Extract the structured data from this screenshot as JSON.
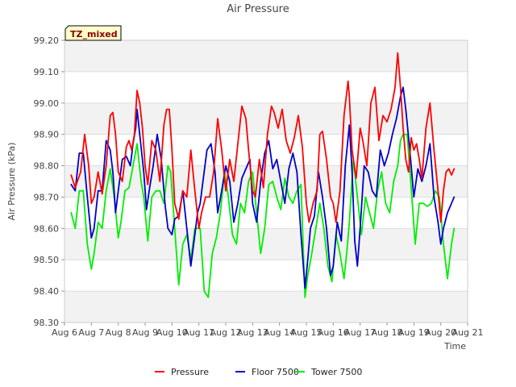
{
  "chart_data": {
    "type": "line",
    "title": "Air Pressure",
    "xlabel": "Time",
    "ylabel": "Air Pressure (kPa)",
    "badge": "TZ_mixed",
    "ylim": [
      98.3,
      99.2
    ],
    "xlim": [
      6,
      21
    ],
    "yticks": [
      "98.30",
      "98.40",
      "98.50",
      "98.60",
      "98.70",
      "98.80",
      "98.90",
      "99.00",
      "99.10",
      "99.20"
    ],
    "xticks": [
      "Aug 6",
      "Aug 7",
      "Aug 8",
      "Aug 9",
      "Aug 10",
      "Aug 11",
      "Aug 12",
      "Aug 13",
      "Aug 14",
      "Aug 15",
      "Aug 16",
      "Aug 17",
      "Aug 18",
      "Aug 19",
      "Aug 20",
      "Aug 21"
    ],
    "x_units": "day of August",
    "legend_position": "bottom",
    "series": [
      {
        "name": "Pressure",
        "color": "#ff0000",
        "x": [
          6.25,
          6.4,
          6.6,
          6.75,
          6.9,
          7.0,
          7.1,
          7.25,
          7.4,
          7.55,
          7.7,
          7.8,
          7.9,
          8.0,
          8.15,
          8.3,
          8.4,
          8.5,
          8.6,
          8.7,
          8.8,
          8.9,
          9.0,
          9.1,
          9.25,
          9.4,
          9.55,
          9.7,
          9.8,
          9.9,
          10.0,
          10.1,
          10.25,
          10.4,
          10.55,
          10.7,
          10.85,
          11.0,
          11.1,
          11.25,
          11.4,
          11.55,
          11.7,
          11.85,
          12.0,
          12.15,
          12.3,
          12.45,
          12.6,
          12.75,
          12.85,
          13.0,
          13.1,
          13.25,
          13.4,
          13.55,
          13.7,
          13.8,
          13.95,
          14.1,
          14.25,
          14.4,
          14.55,
          14.7,
          14.85,
          15.0,
          15.1,
          15.25,
          15.4,
          15.5,
          15.6,
          15.75,
          15.9,
          16.0,
          16.1,
          16.25,
          16.4,
          16.55,
          16.6,
          16.7,
          16.85,
          17.0,
          17.1,
          17.25,
          17.4,
          17.55,
          17.7,
          17.85,
          18.0,
          18.15,
          18.3,
          18.4,
          18.5,
          18.6,
          18.7,
          18.8,
          18.9,
          19.0,
          19.1,
          19.2,
          19.3,
          19.45,
          19.6,
          19.75,
          19.9,
          20.0,
          20.1,
          20.2,
          20.3,
          20.4,
          20.5
        ],
        "values": [
          98.77,
          98.73,
          98.78,
          98.9,
          98.8,
          98.68,
          98.7,
          98.78,
          98.71,
          98.8,
          98.96,
          98.97,
          98.9,
          98.78,
          98.75,
          98.86,
          98.88,
          98.85,
          98.9,
          99.04,
          99.0,
          98.92,
          98.8,
          98.74,
          98.88,
          98.85,
          98.75,
          98.93,
          98.98,
          98.98,
          98.85,
          98.68,
          98.63,
          98.72,
          98.7,
          98.85,
          98.72,
          98.6,
          98.65,
          98.7,
          98.7,
          98.78,
          98.95,
          98.85,
          98.72,
          98.82,
          98.75,
          98.87,
          98.99,
          98.95,
          98.85,
          98.72,
          98.7,
          98.82,
          98.73,
          98.9,
          98.99,
          98.97,
          98.92,
          98.98,
          98.88,
          98.84,
          98.89,
          98.96,
          98.86,
          98.68,
          98.62,
          98.68,
          98.72,
          98.9,
          98.91,
          98.82,
          98.7,
          98.68,
          98.62,
          98.72,
          98.96,
          99.07,
          99.02,
          98.85,
          98.76,
          98.92,
          98.88,
          98.8,
          99.0,
          99.05,
          98.88,
          98.96,
          98.94,
          98.98,
          99.05,
          99.16,
          99.05,
          98.92,
          98.82,
          98.78,
          98.89,
          98.85,
          98.87,
          98.82,
          98.76,
          98.92,
          99.0,
          98.85,
          98.72,
          98.62,
          98.72,
          98.78,
          98.79,
          98.77,
          98.79
        ]
      },
      {
        "name": "Floor 7500",
        "color": "#0000cc",
        "x": [
          6.25,
          6.4,
          6.55,
          6.7,
          6.85,
          7.0,
          7.1,
          7.25,
          7.4,
          7.55,
          7.7,
          7.8,
          7.9,
          8.0,
          8.15,
          8.3,
          8.45,
          8.55,
          8.65,
          8.7,
          8.8,
          8.95,
          9.05,
          9.15,
          9.3,
          9.45,
          9.6,
          9.75,
          9.85,
          10.0,
          10.1,
          10.25,
          10.4,
          10.55,
          10.7,
          10.85,
          10.95,
          11.05,
          11.15,
          11.3,
          11.45,
          11.6,
          11.7,
          11.85,
          12.0,
          12.15,
          12.3,
          12.45,
          12.6,
          12.75,
          12.9,
          13.0,
          13.15,
          13.3,
          13.45,
          13.6,
          13.75,
          13.9,
          14.05,
          14.2,
          14.35,
          14.5,
          14.65,
          14.8,
          14.95,
          15.05,
          15.15,
          15.3,
          15.45,
          15.6,
          15.75,
          15.9,
          16.0,
          16.15,
          16.3,
          16.45,
          16.6,
          16.7,
          16.8,
          16.9,
          17.0,
          17.15,
          17.3,
          17.45,
          17.6,
          17.75,
          17.9,
          18.05,
          18.2,
          18.35,
          18.5,
          18.6,
          18.7,
          18.85,
          19.0,
          19.15,
          19.3,
          19.45,
          19.6,
          19.75,
          19.9,
          20.0,
          20.1,
          20.25,
          20.4,
          20.5
        ],
        "values": [
          98.74,
          98.72,
          98.84,
          98.84,
          98.7,
          98.57,
          98.6,
          98.72,
          98.72,
          98.88,
          98.85,
          98.78,
          98.65,
          98.72,
          98.82,
          98.83,
          98.8,
          98.87,
          98.92,
          98.98,
          98.9,
          98.78,
          98.66,
          98.72,
          98.8,
          98.9,
          98.82,
          98.67,
          98.6,
          98.58,
          98.63,
          98.64,
          98.72,
          98.6,
          98.48,
          98.58,
          98.65,
          98.68,
          98.75,
          98.85,
          98.87,
          98.78,
          98.65,
          98.72,
          98.8,
          98.75,
          98.62,
          98.68,
          98.76,
          98.79,
          98.82,
          98.68,
          98.62,
          98.75,
          98.84,
          98.88,
          98.79,
          98.82,
          98.75,
          98.68,
          98.79,
          98.84,
          98.78,
          98.58,
          98.41,
          98.5,
          98.6,
          98.64,
          98.78,
          98.7,
          98.6,
          98.45,
          98.48,
          98.62,
          98.56,
          98.8,
          98.93,
          98.78,
          98.56,
          98.48,
          98.6,
          98.8,
          98.78,
          98.72,
          98.7,
          98.85,
          98.8,
          98.84,
          98.9,
          98.95,
          99.02,
          99.05,
          98.98,
          98.85,
          98.7,
          98.79,
          98.75,
          98.8,
          98.87,
          98.7,
          98.62,
          98.55,
          98.6,
          98.65,
          98.68,
          98.7
        ]
      },
      {
        "name": "Tower 7500",
        "color": "#00ee00",
        "x": [
          6.25,
          6.4,
          6.55,
          6.7,
          6.85,
          7.0,
          7.1,
          7.25,
          7.4,
          7.55,
          7.7,
          7.85,
          8.0,
          8.1,
          8.25,
          8.4,
          8.55,
          8.7,
          8.85,
          8.95,
          9.1,
          9.25,
          9.4,
          9.55,
          9.7,
          9.85,
          9.95,
          10.1,
          10.25,
          10.4,
          10.55,
          10.7,
          10.85,
          10.95,
          11.05,
          11.2,
          11.35,
          11.5,
          11.65,
          11.8,
          11.95,
          12.1,
          12.25,
          12.4,
          12.55,
          12.7,
          12.85,
          13.0,
          13.15,
          13.3,
          13.45,
          13.6,
          13.75,
          13.9,
          14.05,
          14.2,
          14.35,
          14.5,
          14.65,
          14.8,
          14.95,
          15.05,
          15.2,
          15.35,
          15.5,
          15.65,
          15.8,
          15.95,
          16.1,
          16.25,
          16.4,
          16.5,
          16.6,
          16.75,
          16.9,
          17.05,
          17.2,
          17.35,
          17.5,
          17.65,
          17.8,
          17.95,
          18.1,
          18.25,
          18.4,
          18.5,
          18.6,
          18.75,
          18.9,
          19.05,
          19.2,
          19.35,
          19.5,
          19.65,
          19.8,
          19.95,
          20.1,
          20.25,
          20.4,
          20.5
        ],
        "values": [
          98.65,
          98.6,
          98.72,
          98.72,
          98.55,
          98.47,
          98.52,
          98.62,
          98.6,
          98.72,
          98.79,
          98.7,
          98.57,
          98.62,
          98.72,
          98.73,
          98.8,
          98.87,
          98.75,
          98.7,
          98.56,
          98.7,
          98.72,
          98.72,
          98.68,
          98.8,
          98.78,
          98.6,
          98.42,
          98.55,
          98.58,
          98.5,
          98.6,
          98.6,
          98.6,
          98.4,
          98.38,
          98.52,
          98.57,
          98.65,
          98.78,
          98.7,
          98.58,
          98.55,
          98.68,
          98.65,
          98.75,
          98.78,
          98.65,
          98.52,
          98.6,
          98.74,
          98.75,
          98.7,
          98.66,
          98.76,
          98.7,
          98.68,
          98.72,
          98.74,
          98.38,
          98.45,
          98.52,
          98.6,
          98.68,
          98.6,
          98.48,
          98.43,
          98.58,
          98.52,
          98.44,
          98.52,
          98.62,
          98.82,
          98.7,
          98.58,
          98.7,
          98.65,
          98.6,
          98.72,
          98.78,
          98.68,
          98.65,
          98.75,
          98.8,
          98.88,
          98.9,
          98.9,
          98.73,
          98.55,
          98.68,
          98.68,
          98.67,
          98.68,
          98.72,
          98.7,
          98.55,
          98.44,
          98.55,
          98.6
        ]
      }
    ]
  }
}
